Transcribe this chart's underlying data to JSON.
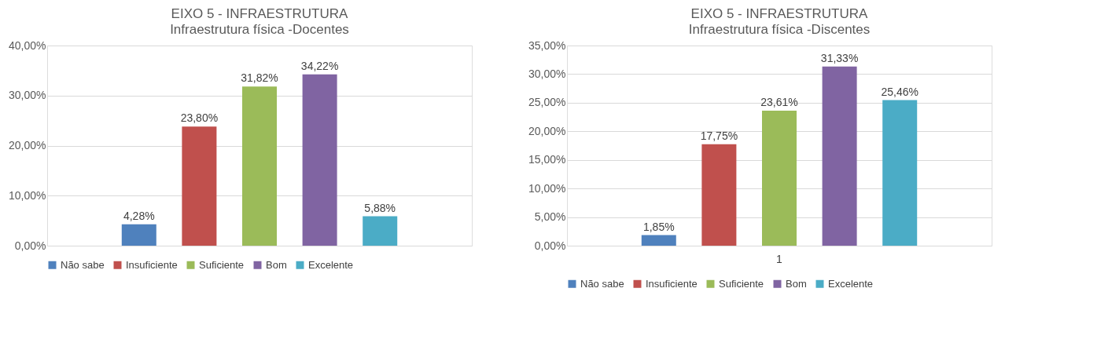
{
  "chart_data": [
    {
      "type": "bar",
      "title": "EIXO 5 - INFRAESTRUTURA",
      "subtitle": "Infraestrutura física -Docentes",
      "categories": [
        null
      ],
      "series": [
        {
          "name": "Não sabe",
          "color": "#4f81bd",
          "values": [
            4.28
          ],
          "value_labels": [
            "4,28%"
          ]
        },
        {
          "name": "Insuficiente",
          "color": "#c0504d",
          "values": [
            23.8
          ],
          "value_labels": [
            "23,80%"
          ]
        },
        {
          "name": "Suficiente",
          "color": "#9bbb59",
          "values": [
            31.82
          ],
          "value_labels": [
            "31,82%"
          ]
        },
        {
          "name": "Bom",
          "color": "#8064a2",
          "values": [
            34.22
          ],
          "value_labels": [
            "34,22%"
          ]
        },
        {
          "name": "Excelente",
          "color": "#4bacc6",
          "values": [
            5.88
          ],
          "value_labels": [
            "5,88%"
          ]
        }
      ],
      "ylim": [
        0,
        40
      ],
      "yticks": [
        {
          "value": 0,
          "label": "0,00%"
        },
        {
          "value": 10,
          "label": "10,00%"
        },
        {
          "value": 20,
          "label": "20,00%"
        },
        {
          "value": 30,
          "label": "30,00%"
        },
        {
          "value": 40,
          "label": "40,00%"
        }
      ],
      "grid": "y",
      "legend": "bottom",
      "tick_labels": "y"
    },
    {
      "type": "bar",
      "title": "EIXO 5 - INFRAESTRUTURA",
      "subtitle": "Infraestrutura física -Discentes",
      "categories": [
        "1"
      ],
      "series": [
        {
          "name": "Não sabe",
          "color": "#4f81bd",
          "values": [
            1.85
          ],
          "value_labels": [
            "1,85%"
          ]
        },
        {
          "name": "Insuficiente",
          "color": "#c0504d",
          "values": [
            17.75
          ],
          "value_labels": [
            "17,75%"
          ]
        },
        {
          "name": "Suficiente",
          "color": "#9bbb59",
          "values": [
            23.61
          ],
          "value_labels": [
            "23,61%"
          ]
        },
        {
          "name": "Bom",
          "color": "#8064a2",
          "values": [
            31.33
          ],
          "value_labels": [
            "31,33%"
          ]
        },
        {
          "name": "Excelente",
          "color": "#4bacc6",
          "values": [
            25.46
          ],
          "value_labels": [
            "25,46%"
          ]
        }
      ],
      "ylim": [
        0,
        35
      ],
      "yticks": [
        {
          "value": 0,
          "label": "0,00%"
        },
        {
          "value": 5,
          "label": "5,00%"
        },
        {
          "value": 10,
          "label": "10,00%"
        },
        {
          "value": 15,
          "label": "15,00%"
        },
        {
          "value": 20,
          "label": "20,00%"
        },
        {
          "value": 25,
          "label": "25,00%"
        },
        {
          "value": 30,
          "label": "30,00%"
        },
        {
          "value": 35,
          "label": "35,00%"
        }
      ],
      "grid": "y",
      "legend": "bottom"
    }
  ]
}
